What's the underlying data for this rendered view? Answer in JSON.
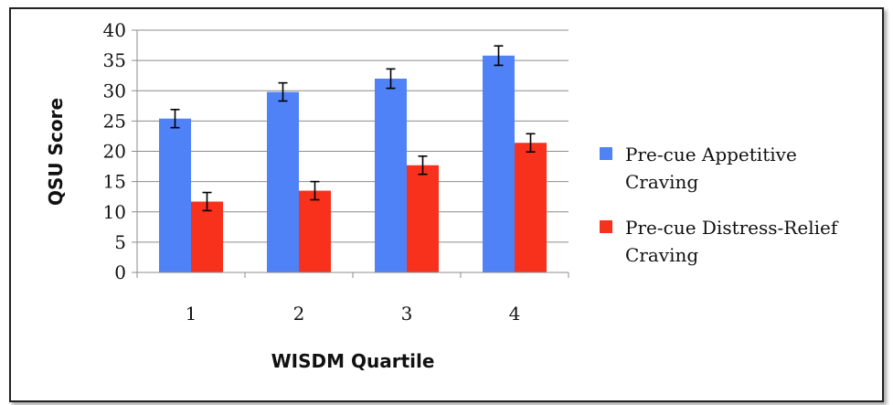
{
  "chart_data": {
    "type": "bar",
    "title": "",
    "xlabel": "WISDM Quartile",
    "ylabel": "QSU Score",
    "categories": [
      "1",
      "2",
      "3",
      "4"
    ],
    "ylim": [
      0,
      40
    ],
    "yticks": [
      0,
      5,
      10,
      15,
      20,
      25,
      30,
      35,
      40
    ],
    "grid": true,
    "legend_position": "right",
    "series": [
      {
        "name": "Pre-cue Appetitive Craving",
        "name_lines": [
          "Pre-cue Appetitive",
          "Craving"
        ],
        "color": "#4f81f7",
        "values": [
          25.4,
          29.8,
          32.0,
          35.8
        ],
        "errors": [
          1.5,
          1.5,
          1.6,
          1.6
        ]
      },
      {
        "name": "Pre-cue Distress-Relief Craving",
        "name_lines": [
          "Pre-cue Distress-Relief",
          "Craving"
        ],
        "color": "#f8311c",
        "values": [
          11.7,
          13.5,
          17.7,
          21.4
        ],
        "errors": [
          1.5,
          1.5,
          1.5,
          1.5
        ]
      }
    ]
  }
}
